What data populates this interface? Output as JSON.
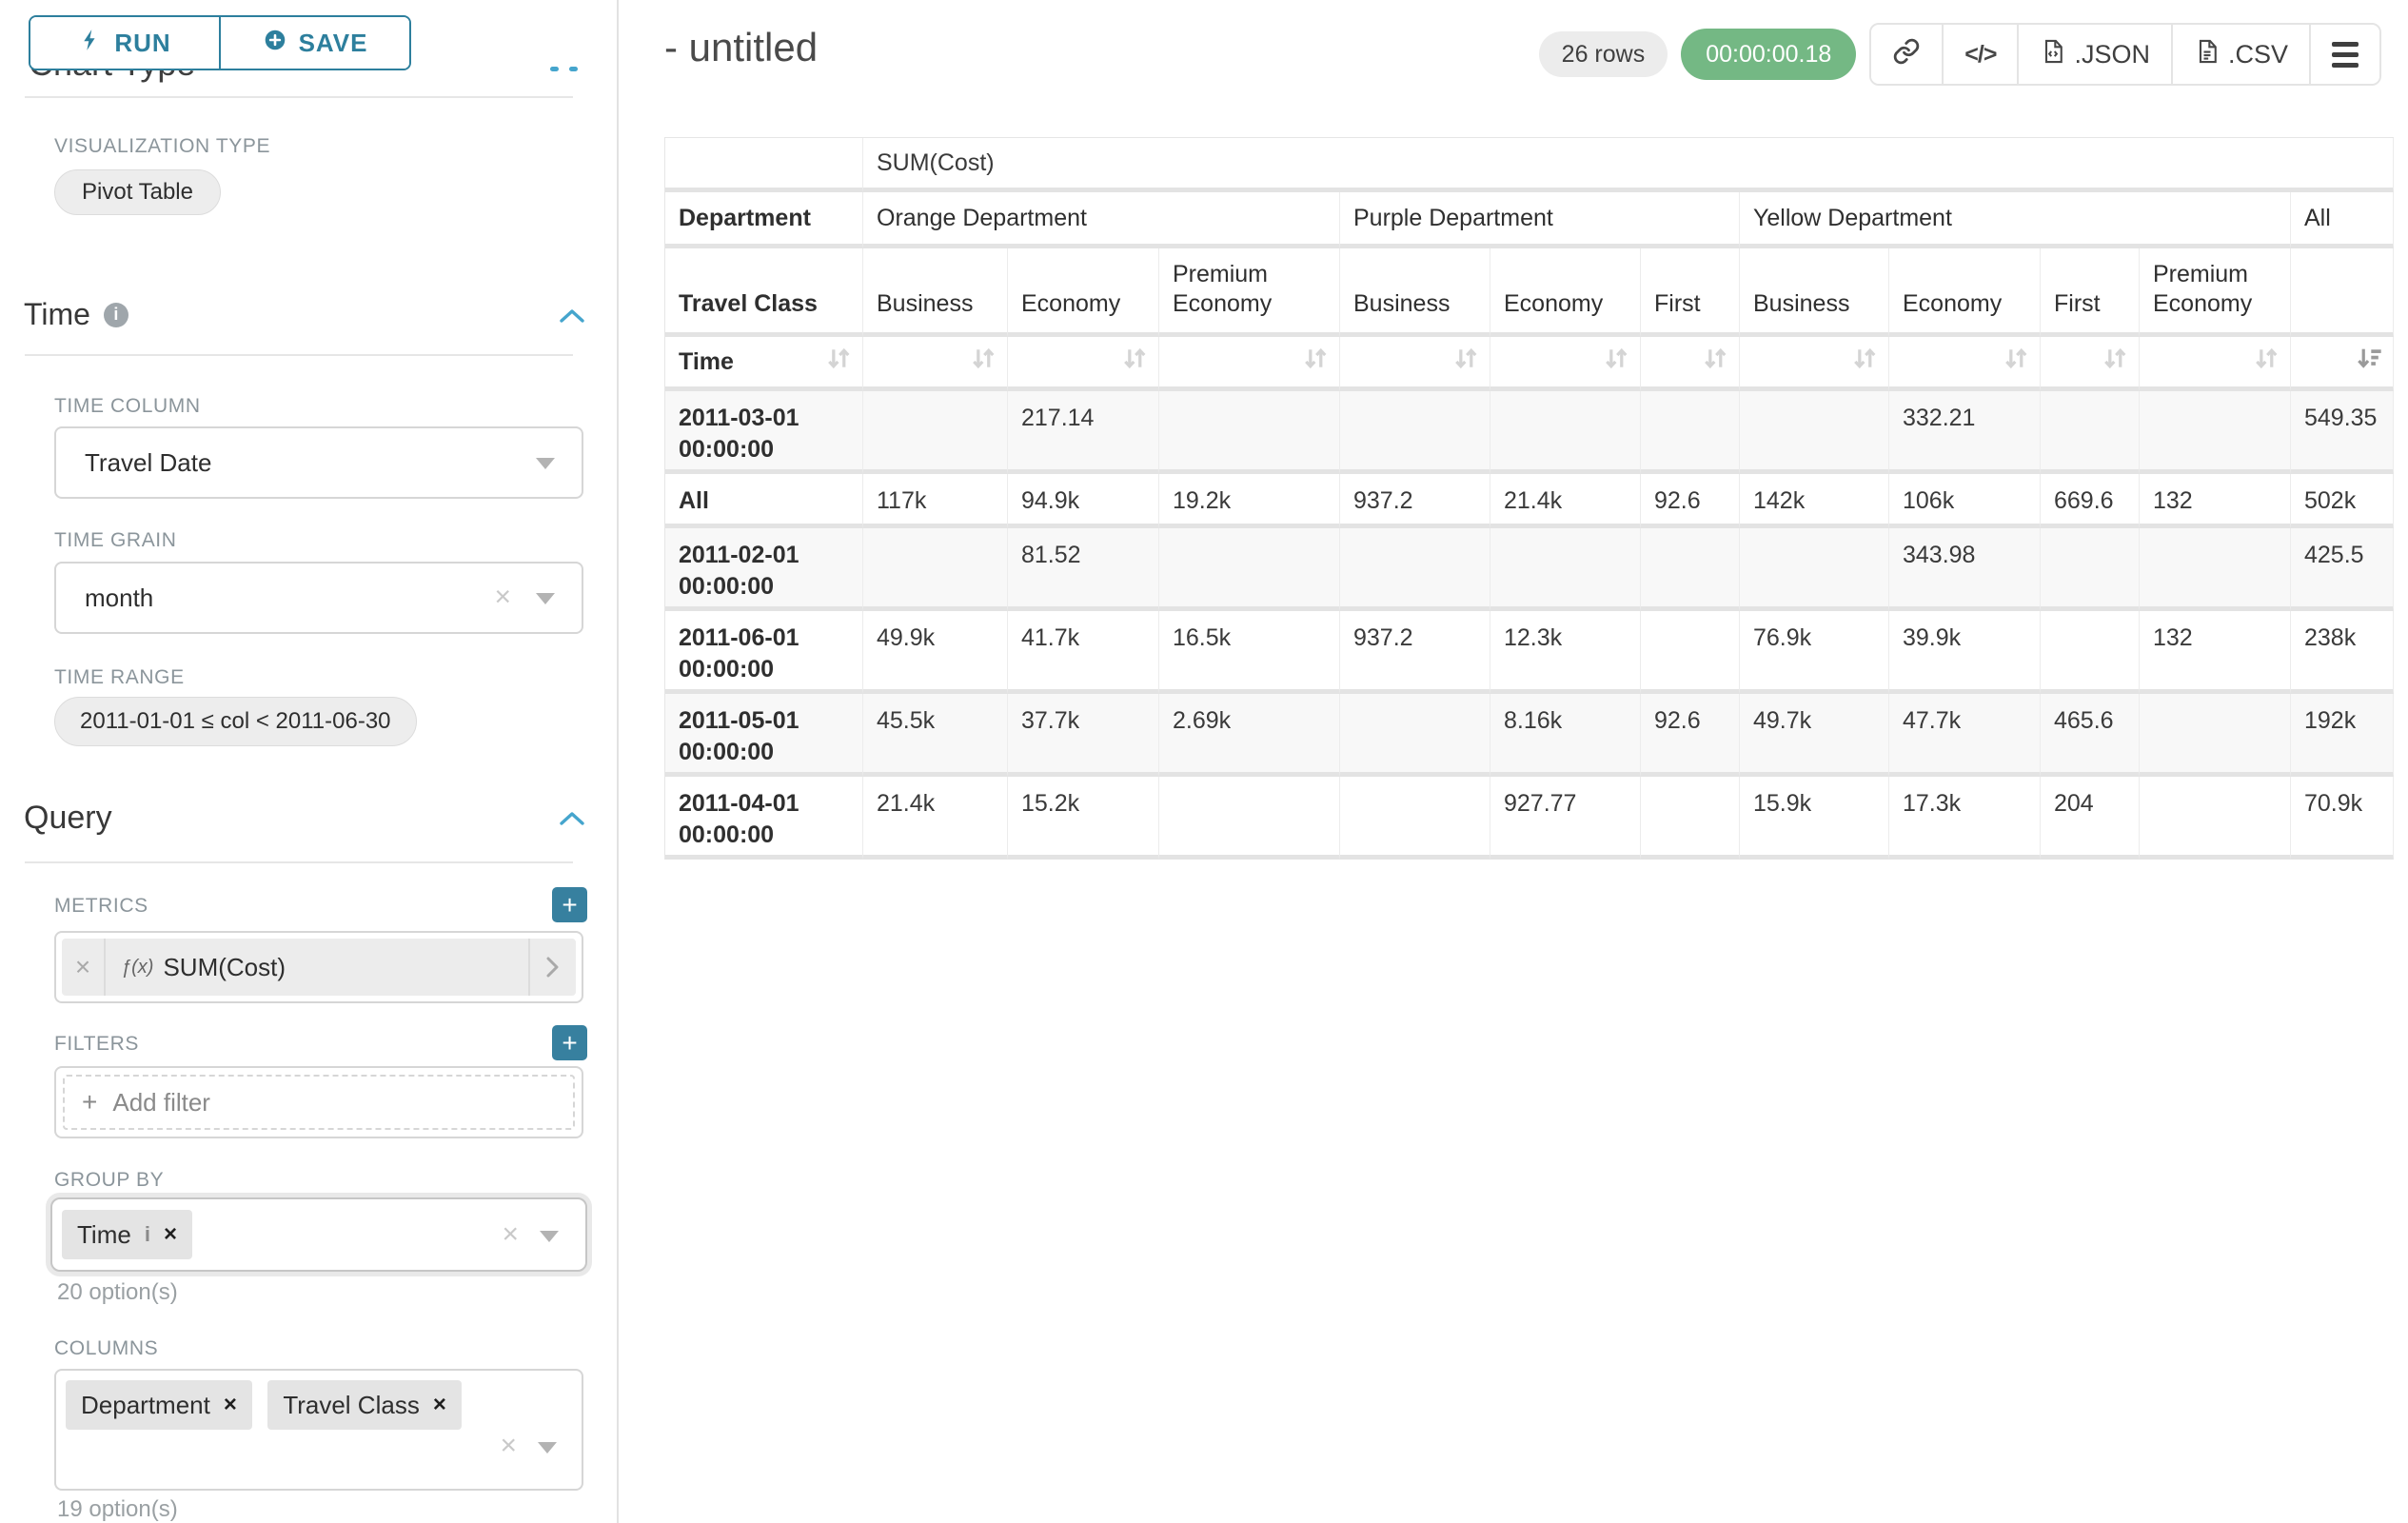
{
  "colors": {
    "accent_teal": "#2d7f9d",
    "timer_green": "#74b884",
    "link_blue": "#45a5cd",
    "plus_teal": "#37809f"
  },
  "sidebar": {
    "run_label": "RUN",
    "save_label": "SAVE",
    "clipped_heading": "Chart Type",
    "viz_type_label": "VISUALIZATION TYPE",
    "viz_type_value": "Pivot Table",
    "time_section": {
      "title": "Time",
      "time_column_label": "TIME COLUMN",
      "time_column_value": "Travel Date",
      "time_grain_label": "TIME GRAIN",
      "time_grain_value": "month",
      "time_range_label": "TIME RANGE",
      "time_range_value": "2011-01-01 ≤ col < 2011-06-30"
    },
    "query_section": {
      "title": "Query",
      "metrics_label": "METRICS",
      "metric_fx": "ƒ(x)",
      "metric_chip": "SUM(Cost)",
      "filters_label": "FILTERS",
      "add_filter_label": "Add filter",
      "group_by_label": "GROUP BY",
      "group_by_chips": [
        {
          "label": "Time"
        }
      ],
      "group_by_options": "20 option(s)",
      "columns_label": "COLUMNS",
      "columns_chips": [
        {
          "label": "Department"
        },
        {
          "label": "Travel Class"
        }
      ],
      "columns_options": "19 option(s)"
    }
  },
  "header": {
    "title": "- untitled",
    "row_count": "26 rows",
    "timer": "00:00:00.18",
    "json_label": ".JSON",
    "csv_label": ".CSV"
  },
  "pivot_table": {
    "metric_header": "SUM(Cost)",
    "department_row_label": "Department",
    "travel_class_row_label": "Travel Class",
    "time_row_label": "Time",
    "col_groups": [
      {
        "label": "Orange Department",
        "span": 3
      },
      {
        "label": "Purple Department",
        "span": 3
      },
      {
        "label": "Yellow Department",
        "span": 4
      },
      {
        "label": "All",
        "span": 1
      }
    ],
    "travel_classes": [
      "Business",
      "Economy",
      "Premium Economy",
      "Business",
      "Economy",
      "First",
      "Business",
      "Economy",
      "First",
      "Premium Economy",
      ""
    ],
    "rows": [
      {
        "label": "2011-03-01 00:00:00",
        "values": [
          "",
          "217.14",
          "",
          "",
          "",
          "",
          "",
          "332.21",
          "",
          "",
          "549.35"
        ]
      },
      {
        "label": "All",
        "values": [
          "117k",
          "94.9k",
          "19.2k",
          "937.2",
          "21.4k",
          "92.6",
          "142k",
          "106k",
          "669.6",
          "132",
          "502k"
        ]
      },
      {
        "label": "2011-02-01 00:00:00",
        "values": [
          "",
          "81.52",
          "",
          "",
          "",
          "",
          "",
          "343.98",
          "",
          "",
          "425.5"
        ]
      },
      {
        "label": "2011-06-01 00:00:00",
        "values": [
          "49.9k",
          "41.7k",
          "16.5k",
          "937.2",
          "12.3k",
          "",
          "76.9k",
          "39.9k",
          "",
          "132",
          "238k"
        ]
      },
      {
        "label": "2011-05-01 00:00:00",
        "values": [
          "45.5k",
          "37.7k",
          "2.69k",
          "",
          "8.16k",
          "92.6",
          "49.7k",
          "47.7k",
          "465.6",
          "",
          "192k"
        ]
      },
      {
        "label": "2011-04-01 00:00:00",
        "values": [
          "21.4k",
          "15.2k",
          "",
          "",
          "927.77",
          "",
          "15.9k",
          "17.3k",
          "204",
          "",
          "70.9k"
        ]
      }
    ]
  }
}
